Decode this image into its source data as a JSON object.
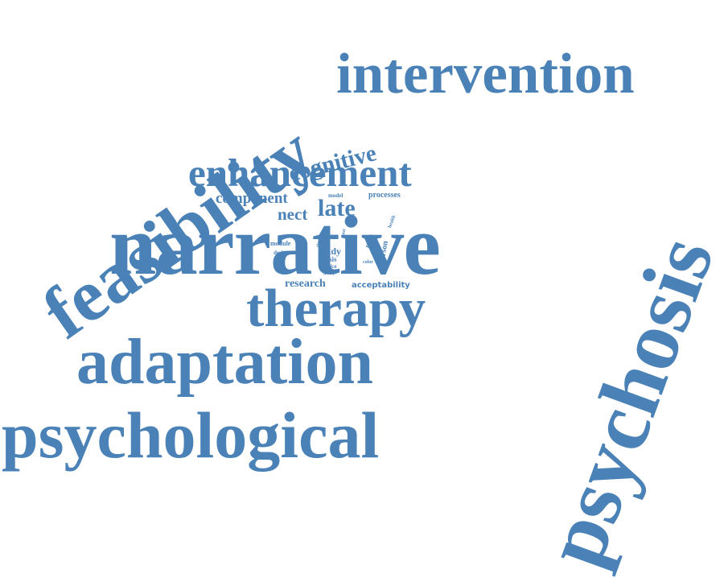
{
  "colors": {
    "word": "#4a82b8",
    "background": "#ffffff"
  },
  "cloud": {
    "words": [
      {
        "key": "psychosis",
        "text": "psychosis"
      },
      {
        "key": "narrative",
        "text": "narrative"
      },
      {
        "key": "feasibility",
        "text": "feasibility"
      },
      {
        "key": "intervention",
        "text": "intervention"
      },
      {
        "key": "psychological",
        "text": "psychological"
      },
      {
        "key": "adaptation",
        "text": "adaptation"
      },
      {
        "key": "therapy",
        "text": "therapy"
      },
      {
        "key": "enhancement",
        "text": "enhancement"
      },
      {
        "key": "cognitive",
        "text": "cognitive"
      },
      {
        "key": "component",
        "text": "component"
      },
      {
        "key": "late",
        "text": "late"
      },
      {
        "key": "nect",
        "text": "nect"
      },
      {
        "key": "processes",
        "text": "processes"
      },
      {
        "key": "model",
        "text": "model"
      },
      {
        "key": "health",
        "text": "health"
      },
      {
        "key": "study",
        "text": "study"
      },
      {
        "key": "thesis",
        "text": "thesis"
      },
      {
        "key": "service",
        "text": "service"
      },
      {
        "key": "group",
        "text": "group"
      },
      {
        "key": "research",
        "text": "research"
      },
      {
        "key": "acceptability",
        "text": "acceptability"
      },
      {
        "key": "module",
        "text": "module"
      },
      {
        "key": "design",
        "text": "design"
      },
      {
        "key": "person",
        "text": "person"
      },
      {
        "key": "proc",
        "text": "proc"
      },
      {
        "key": "test",
        "text": "test"
      },
      {
        "key": "story",
        "text": "story"
      },
      {
        "key": "color",
        "text": "color"
      }
    ]
  }
}
